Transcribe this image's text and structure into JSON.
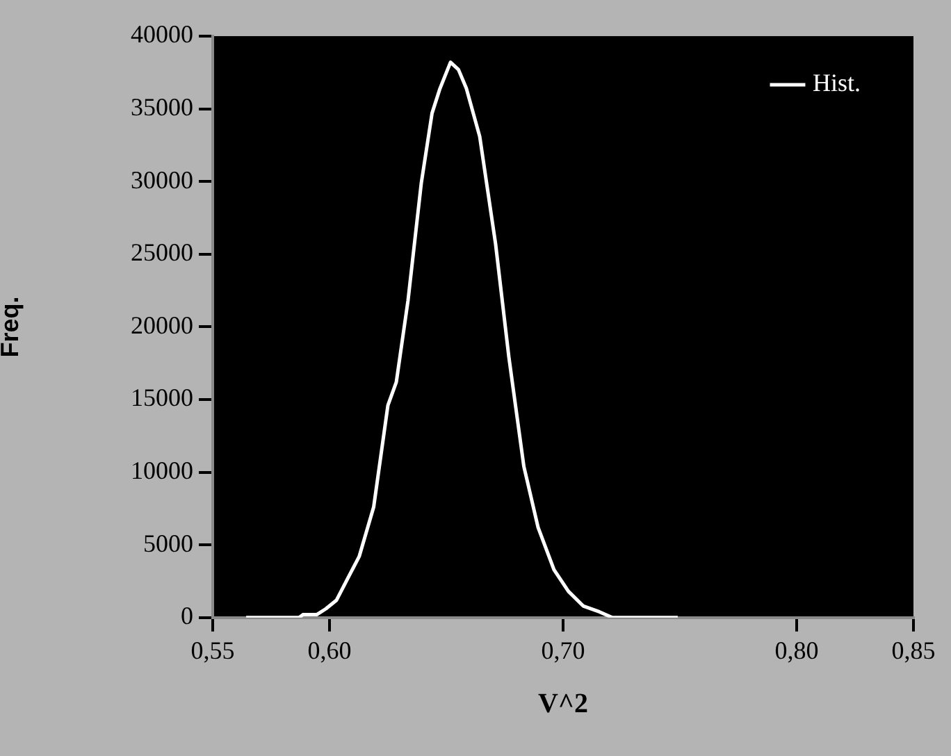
{
  "chart_data": {
    "type": "line",
    "xlabel": "V^2",
    "ylabel": "Freq.",
    "x": [
      0.5643,
      0.587,
      0.5886,
      0.5945,
      0.5984,
      0.603,
      0.6075,
      0.6127,
      0.6189,
      0.625,
      0.6286,
      0.6336,
      0.6393,
      0.6439,
      0.6473,
      0.6518,
      0.6552,
      0.6586,
      0.6643,
      0.6711,
      0.6768,
      0.6832,
      0.6893,
      0.6961,
      0.7023,
      0.7086,
      0.7155,
      0.7211,
      0.7491
    ],
    "series": [
      {
        "name": "Hist.",
        "color": "#ffffff",
        "values": [
          0,
          0,
          200,
          200,
          600,
          1200,
          2600,
          4200,
          7600,
          14600,
          16200,
          21800,
          29900,
          34700,
          36400,
          38200,
          37700,
          36400,
          33100,
          25700,
          17900,
          10400,
          6200,
          3300,
          1800,
          800,
          400,
          0,
          0
        ]
      }
    ],
    "xlim": [
      0.55,
      0.85
    ],
    "ylim": [
      0,
      40000
    ],
    "xticks": [
      {
        "value": 0.55,
        "label": "0,55"
      },
      {
        "value": 0.6,
        "label": "0,60"
      },
      {
        "value": 0.7,
        "label": "0,70"
      },
      {
        "value": 0.8,
        "label": "0,80"
      },
      {
        "value": 0.85,
        "label": "0,85"
      }
    ],
    "yticks": [
      0,
      5000,
      10000,
      15000,
      20000,
      25000,
      30000,
      35000,
      40000
    ],
    "grid": false,
    "legend": "top right",
    "marker": "none",
    "line_style": "solid"
  }
}
